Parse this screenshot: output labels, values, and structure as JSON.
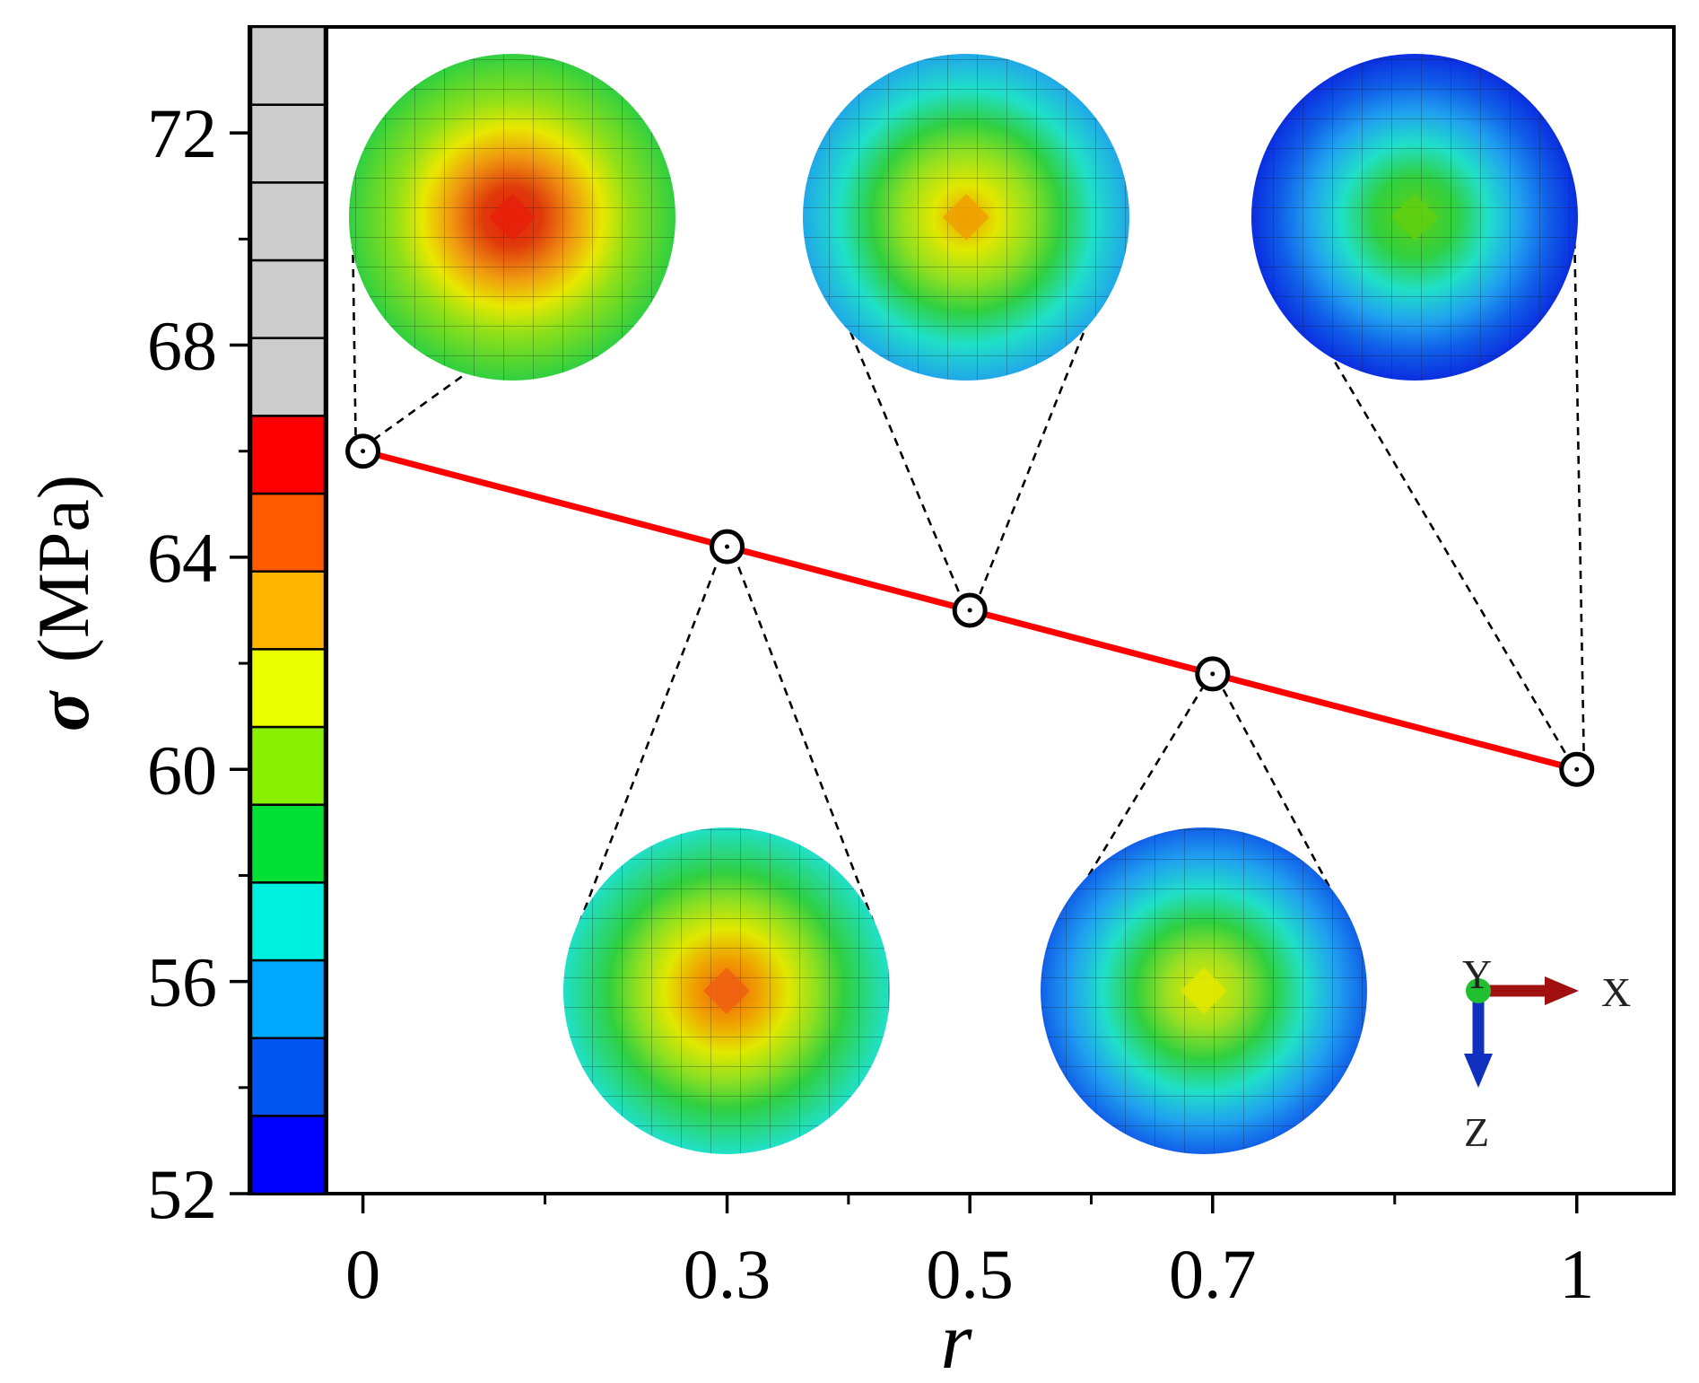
{
  "chart_data": {
    "type": "line",
    "xlabel": "r",
    "ylabel": "σ (MPa)",
    "ylabel_symbol": "σ",
    "ylabel_unit": "(MPa)",
    "xlim": [
      -0.03,
      1.08
    ],
    "ylim": [
      52,
      74
    ],
    "x_ticks": [
      0,
      0.3,
      0.5,
      0.7,
      1
    ],
    "x_tick_labels": [
      "0",
      "0.3",
      "0.5",
      "0.7",
      "1"
    ],
    "x_minor_ticks": [
      0.15,
      0.4,
      0.6,
      0.85
    ],
    "y_ticks": [
      52,
      56,
      60,
      64,
      68,
      72
    ],
    "y_tick_labels": [
      "52",
      "56",
      "60",
      "64",
      "68",
      "72"
    ],
    "y_minor_ticks": [
      54,
      58,
      62,
      66,
      70
    ],
    "series": [
      {
        "name": "sigma",
        "color": "#ff0000",
        "x": [
          0,
          0.3,
          0.5,
          0.7,
          1
        ],
        "y": [
          66.0,
          64.2,
          63.0,
          61.8,
          60.0
        ]
      }
    ],
    "colorbar": {
      "colors": [
        "#0000ff",
        "#0055ee",
        "#00a8ff",
        "#00f0e0",
        "#00e035",
        "#88f000",
        "#eaff00",
        "#ffb400",
        "#ff5a00",
        "#ff0000",
        "#cccccc",
        "#cccccc",
        "#cccccc",
        "#cccccc",
        "#cccccc"
      ]
    },
    "contour_insets": [
      {
        "r": 0,
        "placement": "top",
        "center_color": "#e8200a"
      },
      {
        "r": 0.3,
        "placement": "bottom",
        "center_color": "#f06010"
      },
      {
        "r": 0.5,
        "placement": "top",
        "center_color": "#f0a000"
      },
      {
        "r": 0.7,
        "placement": "bottom",
        "center_color": "#e0e800"
      },
      {
        "r": 1,
        "placement": "top",
        "center_color": "#60d010"
      }
    ],
    "axis_triad": {
      "x_label": "X",
      "y_label": "Y",
      "z_label": "Z"
    }
  }
}
